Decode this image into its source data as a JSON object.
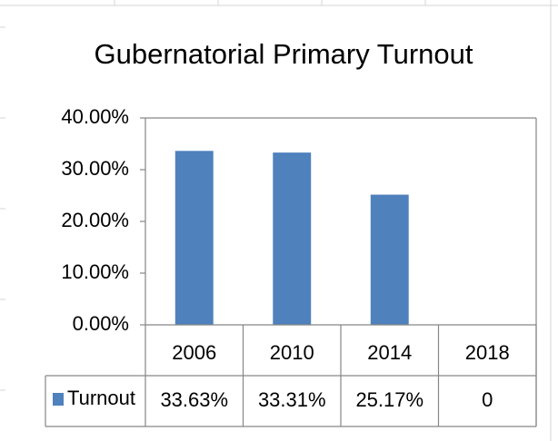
{
  "chart_data": {
    "type": "bar",
    "title": "Gubernatorial Primary Turnout",
    "categories": [
      "2006",
      "2010",
      "2014",
      "2018"
    ],
    "series": [
      {
        "name": "Turnout",
        "color": "#4f81bd",
        "values": [
          33.63,
          33.31,
          25.17,
          0
        ],
        "value_labels": [
          "33.63%",
          "33.31%",
          "25.17%",
          "0"
        ]
      }
    ],
    "ylim": [
      0,
      40
    ],
    "yticks": [
      {
        "value": 0,
        "label": "0.00%"
      },
      {
        "value": 10,
        "label": "10.00%"
      },
      {
        "value": 20,
        "label": "20.00%"
      },
      {
        "value": 30,
        "label": "30.00%"
      },
      {
        "value": 40,
        "label": "40.00%"
      }
    ],
    "grid": false,
    "data_table": true
  }
}
